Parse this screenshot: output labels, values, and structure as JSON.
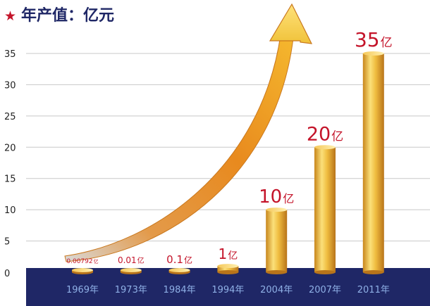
{
  "header": {
    "star_glyph": "★",
    "title": "年产值：亿元"
  },
  "colors": {
    "accent_red": "#c4142a",
    "bar_gold": "#e8b33a",
    "base_navy": "#1f2766",
    "year_label": "#8fb0e6",
    "grid": "#c8c8c8"
  },
  "chart_data": {
    "type": "bar",
    "title": "年产值：亿元",
    "xlabel": "",
    "ylabel": "",
    "ylim": [
      0,
      35
    ],
    "yticks": [
      0,
      5,
      10,
      15,
      20,
      25,
      30,
      35
    ],
    "grid": true,
    "categories": [
      "1969年",
      "1973年",
      "1984年",
      "1994年",
      "2004年",
      "2007年",
      "2011年"
    ],
    "values": [
      0.00792,
      0.01,
      0.1,
      1,
      10,
      20,
      35
    ],
    "data_labels": [
      {
        "num": "0.00792",
        "unit": "亿"
      },
      {
        "num": "0.01",
        "unit": "亿"
      },
      {
        "num": "0.1",
        "unit": "亿"
      },
      {
        "num": "1",
        "unit": "亿"
      },
      {
        "num": "10",
        "unit": "亿"
      },
      {
        "num": "20",
        "unit": "亿"
      },
      {
        "num": "35",
        "unit": "亿"
      }
    ],
    "annotation": "growth-arrow"
  }
}
